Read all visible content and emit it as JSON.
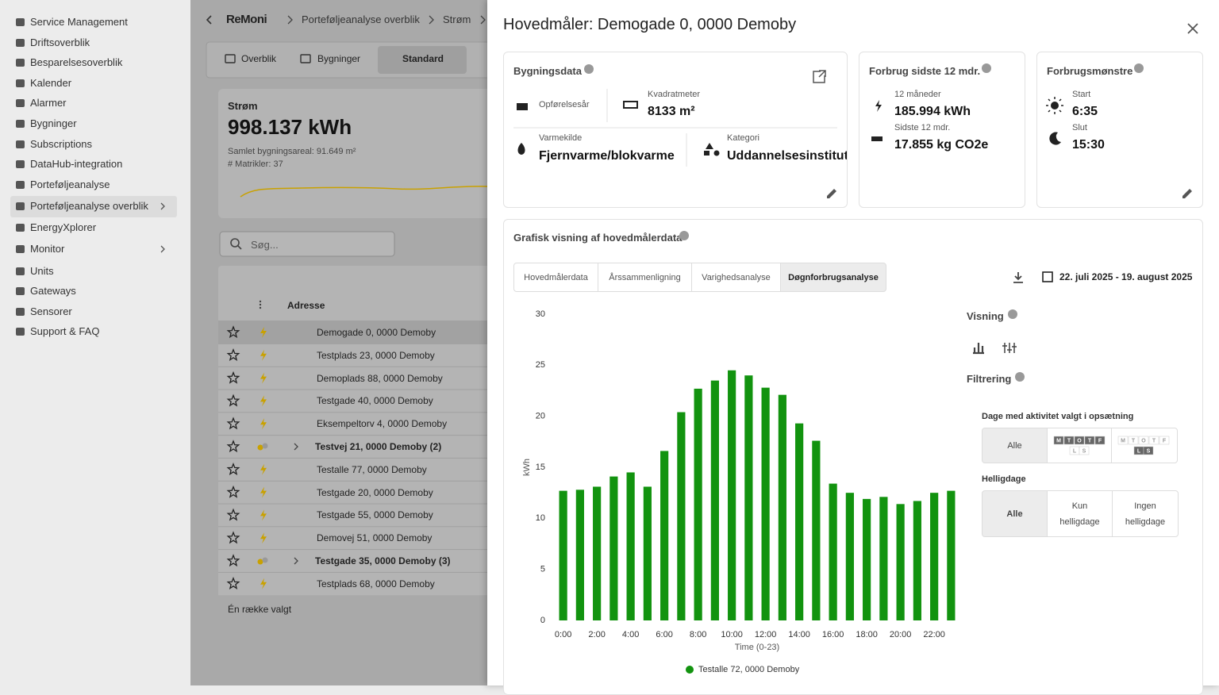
{
  "sidebar": {
    "items": [
      "Service Management",
      "Driftsoverblik",
      "Besparelsesoverblik",
      "Kalender",
      "Alarmer",
      "Bygninger",
      "Subscriptions",
      "DataHub-integration",
      "Porteføljeanalyse",
      "Porteføljeanalyse overblik",
      "EnergyXplorer",
      "Monitor",
      "Units",
      "Gateways",
      "Sensorer",
      "Support & FAQ"
    ],
    "active": 9,
    "expandable": [
      9,
      11
    ]
  },
  "breadcrumb": {
    "logo": "ReMoni",
    "items": [
      "Porteføljeanalyse overblik",
      "Strøm"
    ]
  },
  "tabs": {
    "items": [
      "Overblik",
      "Bygninger",
      "Standard"
    ],
    "active": 2
  },
  "summary": {
    "title": "Strøm",
    "value": "998.137 kWh",
    "area": "Samlet bygningsareal: 91.649 m²",
    "count": "# Matrikler: 37"
  },
  "search": {
    "placeholder": "Søg..."
  },
  "table": {
    "header": "Adresse",
    "selected": 0,
    "footer": "Én række valgt",
    "rows": [
      {
        "address": "Demogade 0, 0000 Demoby",
        "group": false
      },
      {
        "address": "Testplads 23, 0000 Demoby",
        "group": false
      },
      {
        "address": "Demoplads 88, 0000 Demoby",
        "group": false
      },
      {
        "address": "Testgade 40, 0000 Demoby",
        "group": false
      },
      {
        "address": "Eksempeltorv 4, 0000 Demoby",
        "group": false
      },
      {
        "address": "Testvej 21, 0000 Demoby (2)",
        "group": true
      },
      {
        "address": "Testalle 77, 0000 Demoby",
        "group": false
      },
      {
        "address": "Testgade 20, 0000 Demoby",
        "group": false
      },
      {
        "address": "Testgade 55, 0000 Demoby",
        "group": false
      },
      {
        "address": "Demovej 51, 0000 Demoby",
        "group": false
      },
      {
        "address": "Testgade 35, 0000 Demoby (3)",
        "group": true
      },
      {
        "address": "Testplads 68, 0000 Demoby",
        "group": false
      }
    ]
  },
  "drawer": {
    "title": "Hovedmåler: Demogade 0, 0000 Demoby",
    "building": {
      "title": "Bygningsdata",
      "built_label": "Opførelsesår",
      "area_label": "Kvadratmeter",
      "area": "8133 m²",
      "heat_label": "Varmekilde",
      "heat": "Fjernvarme/blokvarme",
      "category_label": "Kategori",
      "category": "Uddannelsesinstitution"
    },
    "consumption": {
      "title": "Forbrug sidste 12 mdr.",
      "energy_label": "12 måneder",
      "energy": "185.994 kWh",
      "co2_label": "Sidste 12 mdr.",
      "co2": "17.855 kg CO2e"
    },
    "pattern": {
      "title": "Forbrugsmønstre",
      "start_label": "Start",
      "start": "6:35",
      "end_label": "Slut",
      "end": "15:30"
    },
    "graph": {
      "title": "Grafisk visning af hovedmålerdata",
      "tabs": [
        "Hovedmålerdata",
        "Årssammenligning",
        "Varighedsanalyse",
        "Døgnforbrugsanalyse"
      ],
      "active_tab": 3,
      "date_range": "22. juli 2025 - 19. august 2025"
    },
    "filters": {
      "view_title": "Visning",
      "filter_title": "Filtrering",
      "days_title": "Dage med aktivitet valgt i opsætning",
      "days_option": "Alle",
      "weekdays": [
        "M",
        "T",
        "O",
        "T",
        "F",
        "L",
        "S"
      ],
      "holidays_title": "Helligdage",
      "holiday_options": [
        "Alle",
        "Kun helligdage",
        "Ingen helligdage"
      ]
    }
  },
  "chart_data": {
    "type": "bar",
    "x_label": "Time (0-23)",
    "y_label": "kWh",
    "categories": [
      "0:00",
      null,
      "2:00",
      null,
      "4:00",
      null,
      "6:00",
      null,
      "8:00",
      null,
      "10:00",
      null,
      "12:00",
      null,
      "14:00",
      null,
      "16:00",
      null,
      "18:00",
      null,
      "20:00",
      null,
      "22:00",
      null
    ],
    "series": [
      {
        "name": "Testalle 72, 0000 Demoby",
        "color": "#12930f",
        "values": [
          12.7,
          12.8,
          13.1,
          14.1,
          14.5,
          13.1,
          16.6,
          20.4,
          22.7,
          23.5,
          24.5,
          24.0,
          22.8,
          22.1,
          19.3,
          17.6,
          13.4,
          12.5,
          11.9,
          12.1,
          11.4,
          11.7,
          12.5,
          12.7
        ]
      }
    ],
    "ylim": [
      0,
      30
    ],
    "yticks": [
      0,
      5,
      10,
      15,
      20,
      25,
      30
    ],
    "grid": false
  }
}
